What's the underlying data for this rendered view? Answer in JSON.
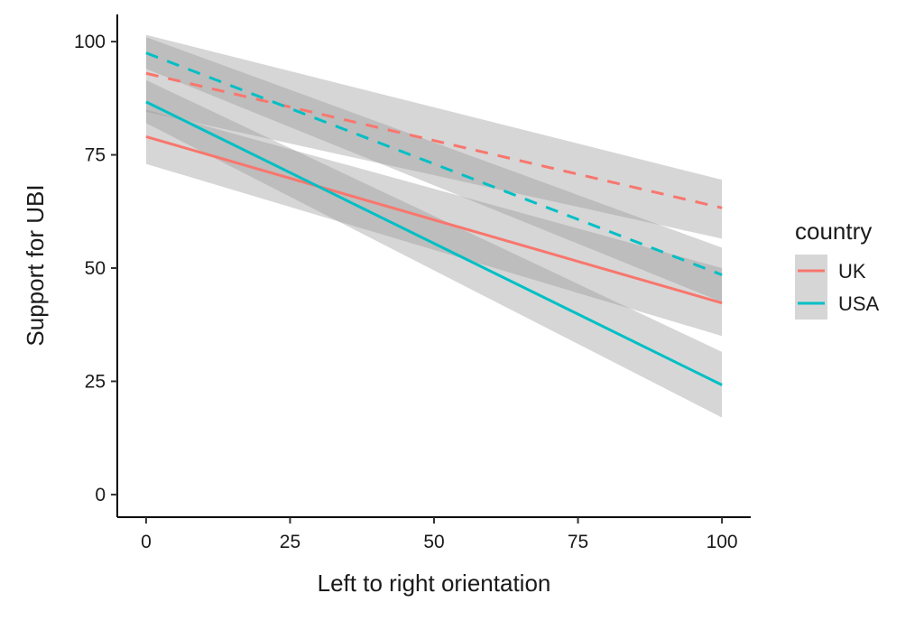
{
  "chart_data": {
    "type": "line",
    "title": "",
    "xlabel": "Left to right orientation",
    "ylabel": "Support for UBI",
    "xlim": [
      -5,
      105
    ],
    "ylim": [
      -5,
      106
    ],
    "x_ticks": [
      0,
      25,
      50,
      75,
      100
    ],
    "x_tick_labels": [
      "0",
      "25",
      "50",
      "75",
      "100"
    ],
    "y_ticks": [
      0,
      25,
      50,
      75,
      100
    ],
    "y_tick_labels": [
      "0",
      "25",
      "50",
      "75",
      "100"
    ],
    "grid": false,
    "legend": {
      "title": "country",
      "position": "right",
      "entries": [
        {
          "label": "UK",
          "color": "#F8766D"
        },
        {
          "label": "USA",
          "color": "#00BFC4"
        }
      ]
    },
    "series": [
      {
        "country": "UK",
        "line_style": "solid",
        "color": "#F8766D",
        "x": [
          0,
          100
        ],
        "y": [
          79,
          42.3
        ],
        "ci_lower": [
          73,
          35
        ],
        "ci_upper": [
          85,
          50
        ]
      },
      {
        "country": "UK",
        "line_style": "dashed",
        "color": "#F8766D",
        "x": [
          0,
          100
        ],
        "y": [
          93,
          63.3
        ],
        "ci_lower": [
          84.5,
          56.5
        ],
        "ci_upper": [
          101.5,
          69.5
        ]
      },
      {
        "country": "USA",
        "line_style": "solid",
        "color": "#00BFC4",
        "x": [
          0,
          100
        ],
        "y": [
          86.7,
          24.2
        ],
        "ci_lower": [
          82,
          17
        ],
        "ci_upper": [
          91.5,
          31.5
        ]
      },
      {
        "country": "USA",
        "line_style": "dashed",
        "color": "#00BFC4",
        "x": [
          0,
          100
        ],
        "y": [
          97.5,
          48.5
        ],
        "ci_lower": [
          94,
          42.5
        ],
        "ci_upper": [
          101,
          54.5
        ]
      }
    ]
  }
}
